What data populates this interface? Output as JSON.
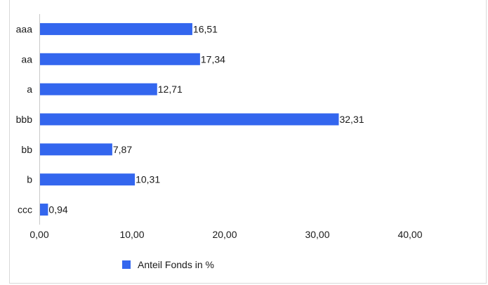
{
  "chart_data": {
    "type": "bar",
    "orientation": "horizontal",
    "categories": [
      "aaa",
      "aa",
      "a",
      "bbb",
      "bb",
      "b",
      "ccc"
    ],
    "series": [
      {
        "name": "Anteil Fonds in %",
        "values": [
          16.51,
          17.34,
          12.71,
          32.31,
          7.87,
          10.31,
          0.94
        ]
      }
    ],
    "data_labels": [
      "16,51",
      "17,34",
      "12,71",
      "32,31",
      "7,87",
      "10,31",
      "0,94"
    ],
    "x_ticks": [
      "0,00",
      "10,00",
      "20,00",
      "30,00",
      "40,00"
    ],
    "xlim": [
      0,
      40
    ],
    "grid": false,
    "legend_position": "bottom-left",
    "bar_color": "#3366ee"
  }
}
